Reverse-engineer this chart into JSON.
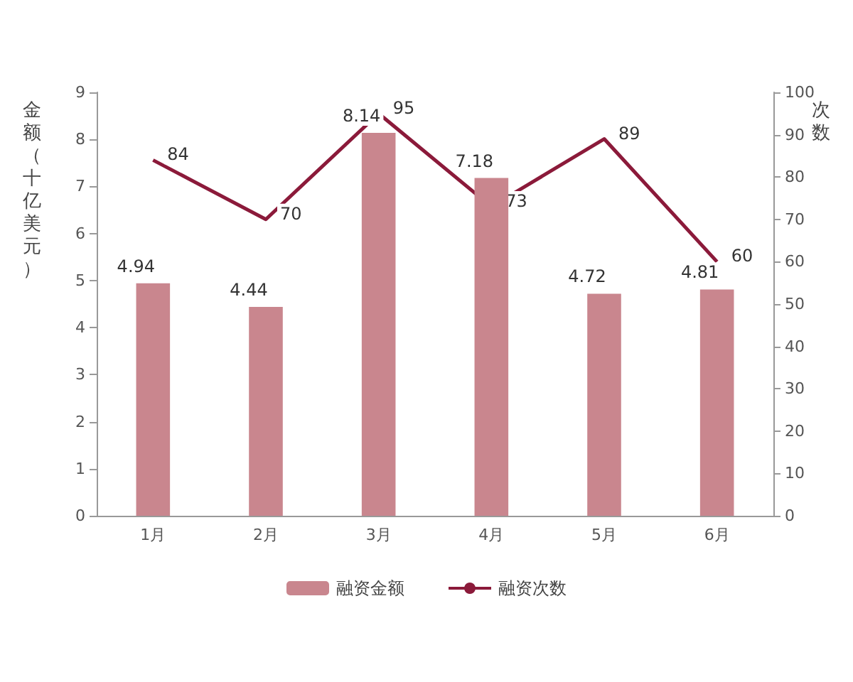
{
  "chart_data": {
    "type": "bar",
    "ylabel": "金额（十亿美元）",
    "y2label": "次数",
    "categories": [
      "1月",
      "2月",
      "3月",
      "4月",
      "5月",
      "6月"
    ],
    "series": [
      {
        "name": "融资金额",
        "color": "#c9868e",
        "values": [
          4.94,
          4.44,
          8.14,
          7.18,
          4.72,
          4.81
        ]
      },
      {
        "name": "融资次数",
        "type": "line",
        "axis": "y2",
        "color": "#8b1a3a",
        "values": [
          84,
          70,
          95,
          73,
          89,
          60
        ]
      }
    ],
    "ylim": [
      0,
      9
    ],
    "yticks": [
      0,
      1,
      2,
      3,
      4,
      5,
      6,
      7,
      8,
      9
    ],
    "y2lim": [
      0,
      100
    ],
    "y2ticks": [
      0,
      10,
      20,
      30,
      40,
      50,
      60,
      70,
      80,
      90,
      100
    ],
    "data_labels": true,
    "grid": false,
    "legend": "bottom",
    "marker": "none",
    "line_style": "solid"
  }
}
